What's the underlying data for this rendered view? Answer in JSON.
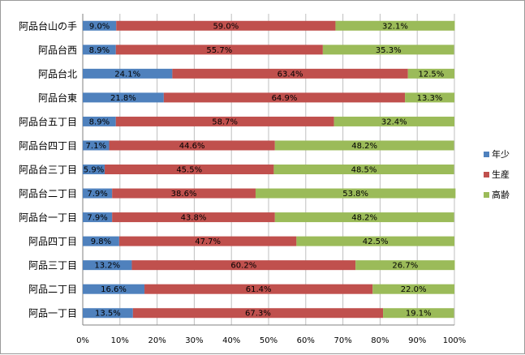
{
  "chart_data": {
    "type": "bar",
    "orientation": "horizontal",
    "stacked": "percent",
    "title": "",
    "xlabel": "",
    "ylabel": "",
    "xlim": [
      0,
      100
    ],
    "x_ticks": [
      "0%",
      "10%",
      "20%",
      "30%",
      "40%",
      "50%",
      "60%",
      "70%",
      "80%",
      "90%",
      "100%"
    ],
    "grid": "vertical",
    "legend_position": "right",
    "categories": [
      "阿品台山の手",
      "阿品台西",
      "阿品台北",
      "阿品台東",
      "阿品台五丁目",
      "阿品台四丁目",
      "阿品台三丁目",
      "阿品台二丁目",
      "阿品台一丁目",
      "阿品四丁目",
      "阿品三丁目",
      "阿品二丁目",
      "阿品一丁目"
    ],
    "series": [
      {
        "name": "年少",
        "color": "#4f81bd",
        "values": [
          9.0,
          8.9,
          24.1,
          21.8,
          8.9,
          7.1,
          5.9,
          7.9,
          7.9,
          9.8,
          13.2,
          16.6,
          13.5
        ],
        "labels": [
          "9.0%",
          "8.9%",
          "24.1%",
          "21.8%",
          "8.9%",
          "7.1%",
          "5.9%",
          "7.9%",
          "7.9%",
          "9.8%",
          "13.2%",
          "16.6%",
          "13.5%"
        ]
      },
      {
        "name": "生産",
        "color": "#c0504d",
        "values": [
          59.0,
          55.7,
          63.4,
          64.9,
          58.7,
          44.6,
          45.5,
          38.6,
          43.8,
          47.7,
          60.2,
          61.4,
          67.3
        ],
        "labels": [
          "59.0%",
          "55.7%",
          "63.4%",
          "64.9%",
          "58.7%",
          "44.6%",
          "45.5%",
          "38.6%",
          "43.8%",
          "47.7%",
          "60.2%",
          "61.4%",
          "67.3%"
        ]
      },
      {
        "name": "高齢",
        "color": "#9bbb59",
        "values": [
          32.1,
          35.3,
          12.5,
          13.3,
          32.4,
          48.2,
          48.5,
          53.8,
          48.2,
          42.5,
          26.7,
          22.0,
          19.1
        ],
        "labels": [
          "32.1%",
          "35.3%",
          "12.5%",
          "13.3%",
          "32.4%",
          "48.2%",
          "48.5%",
          "53.8%",
          "48.2%",
          "42.5%",
          "26.7%",
          "22.0%",
          "19.1%"
        ]
      }
    ]
  }
}
